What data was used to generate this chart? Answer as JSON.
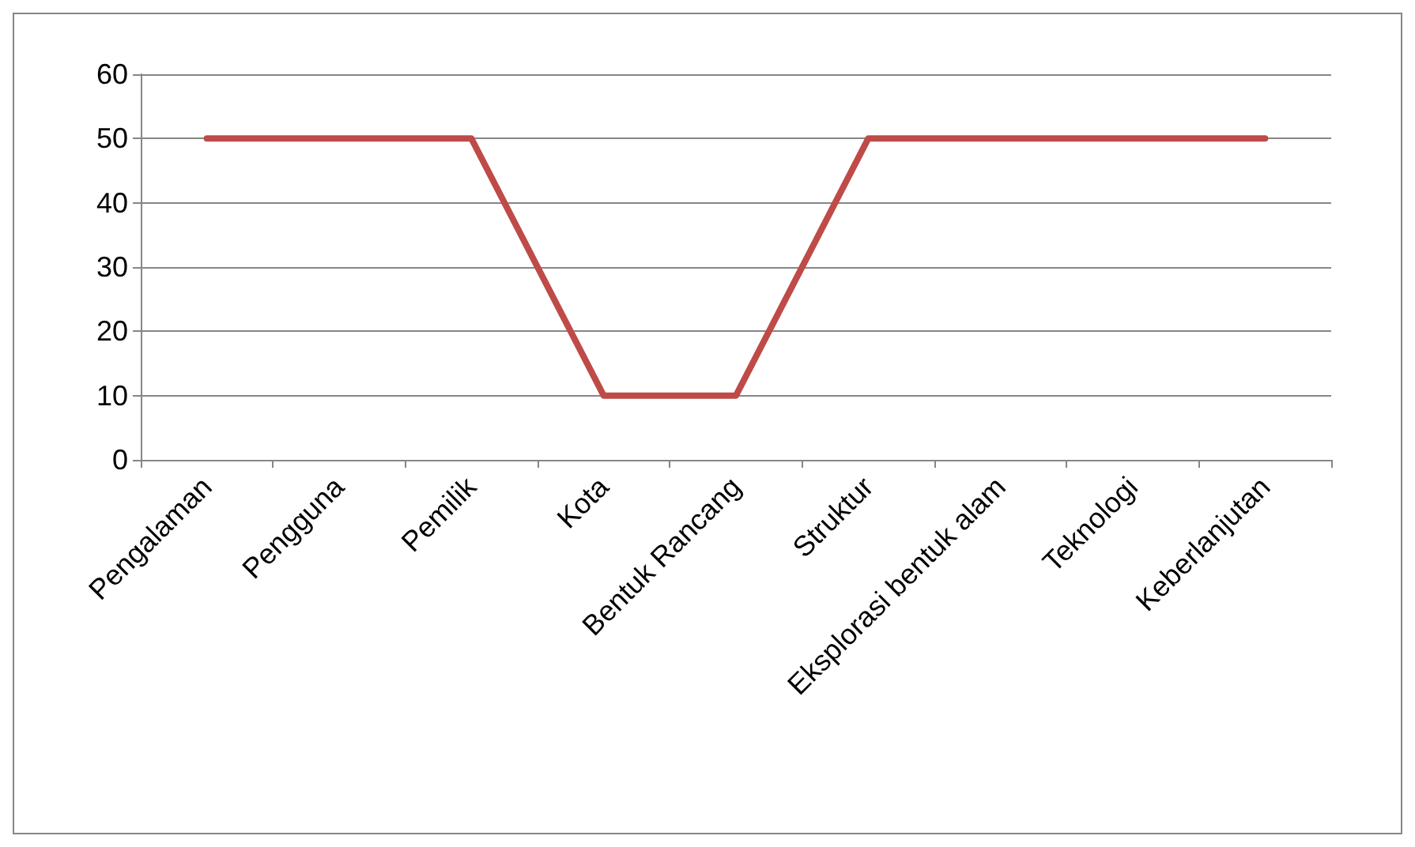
{
  "chart_data": {
    "type": "line",
    "categories": [
      "Pengalaman",
      "Pengguna",
      "Pemilik",
      "Kota",
      "Bentuk Rancang",
      "Struktur",
      "Eksplorasi bentuk alam",
      "Teknologi",
      "Keberlanjutan"
    ],
    "values": [
      50,
      50,
      50,
      10,
      10,
      50,
      50,
      50,
      50
    ],
    "color": "#be4b48",
    "ylim": [
      0,
      60
    ],
    "yticks": [
      0,
      10,
      20,
      30,
      40,
      50,
      60
    ],
    "grid": "y",
    "marker": "none",
    "line_style": "solid"
  }
}
